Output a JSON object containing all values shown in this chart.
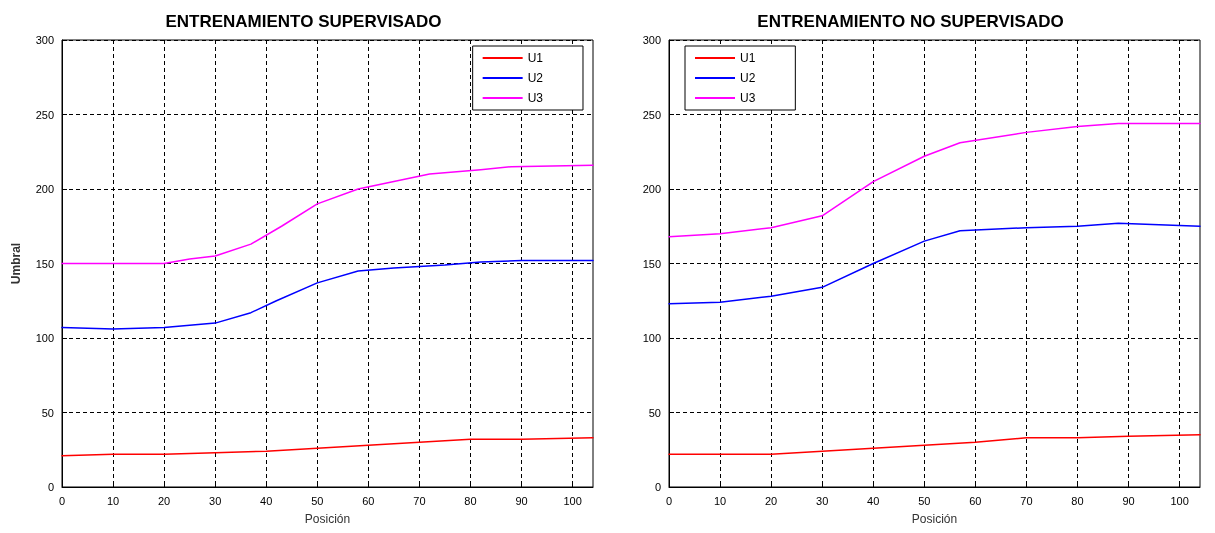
{
  "chart_data": [
    {
      "type": "line",
      "title": "ENTRENAMIENTO SUPERVISADO",
      "xlabel": "Posición",
      "ylabel": "Umbral",
      "xlim": [
        0,
        104
      ],
      "xticks": [
        0,
        10,
        20,
        30,
        40,
        50,
        60,
        70,
        80,
        90,
        100
      ],
      "ylim": [
        0,
        300
      ],
      "yticks": [
        0,
        50,
        100,
        150,
        200,
        250,
        300
      ],
      "grid": true,
      "legend": "top right",
      "line_style": "solid",
      "marker": "none",
      "series": [
        {
          "name": "U1",
          "color": "#ff0000",
          "x": [
            0,
            10,
            20,
            30,
            40,
            50,
            60,
            70,
            80,
            90,
            104
          ],
          "values": [
            21,
            22,
            22,
            23,
            24,
            26,
            28,
            30,
            32,
            32,
            33
          ]
        },
        {
          "name": "U2",
          "color": "#0000ff",
          "x": [
            0,
            10,
            20,
            30,
            37,
            42,
            50,
            58,
            65,
            75,
            82,
            90,
            104
          ],
          "values": [
            107,
            106,
            107,
            110,
            117,
            125,
            137,
            145,
            147,
            149,
            151,
            152,
            152
          ]
        },
        {
          "name": "U3",
          "color": "#ff00ff",
          "x": [
            0,
            10,
            20,
            25,
            30,
            37,
            43,
            50,
            58,
            65,
            72,
            82,
            88,
            104
          ],
          "values": [
            150,
            150,
            150,
            153,
            155,
            163,
            175,
            190,
            200,
            205,
            210,
            213,
            215,
            216
          ]
        }
      ]
    },
    {
      "type": "line",
      "title": "ENTRENAMIENTO NO SUPERVISADO",
      "xlabel": "Posición",
      "xlim": [
        0,
        104
      ],
      "xticks": [
        0,
        10,
        20,
        30,
        40,
        50,
        60,
        70,
        80,
        90,
        100
      ],
      "ylim": [
        0,
        300
      ],
      "yticks": [
        0,
        50,
        100,
        150,
        200,
        250,
        300
      ],
      "grid": true,
      "legend": "top left",
      "line_style": "solid",
      "marker": "none",
      "series": [
        {
          "name": "U1",
          "color": "#ff0000",
          "x": [
            0,
            10,
            20,
            30,
            40,
            50,
            60,
            70,
            80,
            90,
            104
          ],
          "values": [
            22,
            22,
            22,
            24,
            26,
            28,
            30,
            33,
            33,
            34,
            35
          ]
        },
        {
          "name": "U2",
          "color": "#0000ff",
          "x": [
            0,
            10,
            20,
            30,
            40,
            50,
            57,
            70,
            80,
            88,
            104
          ],
          "values": [
            123,
            124,
            128,
            134,
            150,
            165,
            172,
            174,
            175,
            177,
            175
          ]
        },
        {
          "name": "U3",
          "color": "#ff00ff",
          "x": [
            0,
            10,
            20,
            30,
            40,
            50,
            57,
            70,
            80,
            88,
            104
          ],
          "values": [
            168,
            170,
            174,
            182,
            205,
            222,
            231,
            238,
            242,
            244,
            244
          ]
        }
      ]
    }
  ]
}
